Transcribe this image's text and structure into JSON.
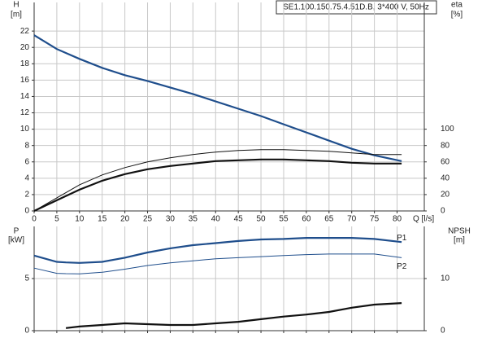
{
  "chart_data": [
    {
      "type": "line",
      "title": "SE1.100.150.75.4.51D.B, 3*400 V, 50Hz",
      "ylabel": "H",
      "yunit": "[m]",
      "y2label": "eta",
      "y2unit": "[%]",
      "xlabel": "Q [l/s]",
      "x": [
        0,
        5,
        10,
        15,
        20,
        25,
        30,
        35,
        40,
        45,
        50,
        55,
        60,
        65,
        70,
        75,
        81
      ],
      "xlim": [
        0,
        86
      ],
      "xticks": [
        0,
        5,
        10,
        15,
        20,
        25,
        30,
        35,
        40,
        45,
        50,
        55,
        60,
        65,
        70,
        75,
        80
      ],
      "ylim": [
        0,
        25.5
      ],
      "yticks": [
        0,
        2,
        4,
        6,
        8,
        10,
        12,
        14,
        16,
        18,
        20,
        22
      ],
      "y2lim": [
        0,
        255
      ],
      "y2ticks": [
        0,
        20,
        40,
        60,
        80,
        100
      ],
      "grid": true,
      "series": [
        {
          "color": "#1f4e8c",
          "bold": true,
          "values": [
            21.5,
            19.8,
            18.6,
            17.5,
            16.6,
            15.9,
            15.1,
            14.3,
            13.4,
            12.5,
            11.6,
            10.6,
            9.6,
            8.6,
            7.6,
            6.8,
            6.1
          ]
        },
        {
          "color": "#111111",
          "bold": false,
          "axis": "y2",
          "values": [
            0,
            16,
            32,
            44,
            53,
            60,
            65,
            69,
            72,
            74,
            75,
            75,
            74,
            73,
            71,
            69,
            69
          ]
        },
        {
          "color": "#111111",
          "bold": true,
          "axis": "y2",
          "values": [
            0,
            13,
            26,
            37,
            45,
            51,
            55,
            58,
            61,
            62,
            63,
            63,
            62,
            61,
            59,
            58,
            58
          ]
        }
      ]
    },
    {
      "type": "line",
      "ylabel": "P",
      "yunit": "[kW]",
      "y2label": "NPSH",
      "y2unit": "[m]",
      "x": [
        0,
        5,
        7,
        10,
        15,
        20,
        25,
        30,
        35,
        40,
        45,
        50,
        55,
        60,
        65,
        70,
        75,
        81
      ],
      "xlim": [
        0,
        86
      ],
      "xticks": [
        0,
        5,
        10,
        15,
        20,
        25,
        30,
        35,
        40,
        45,
        50,
        55,
        60,
        65,
        70,
        75,
        80
      ],
      "ylim": [
        0,
        10
      ],
      "yticks": [
        0,
        5
      ],
      "y2lim": [
        0,
        20
      ],
      "y2ticks": [
        0,
        10
      ],
      "grid": true,
      "series": [
        {
          "name": "P1",
          "color": "#1f4e8c",
          "bold": true,
          "values": [
            7.2,
            6.6,
            6.55,
            6.5,
            6.6,
            7.0,
            7.5,
            7.9,
            8.2,
            8.4,
            8.6,
            8.75,
            8.8,
            8.9,
            8.9,
            8.9,
            8.8,
            8.5
          ]
        },
        {
          "name": "P2",
          "color": "#1f4e8c",
          "bold": false,
          "values": [
            6.0,
            5.5,
            5.47,
            5.45,
            5.6,
            5.9,
            6.25,
            6.5,
            6.7,
            6.9,
            7.0,
            7.1,
            7.2,
            7.3,
            7.35,
            7.35,
            7.35,
            7.0
          ]
        },
        {
          "color": "#111111",
          "bold": true,
          "axis": "y2",
          "values": [
            null,
            null,
            0.5,
            0.8,
            1.1,
            1.4,
            1.25,
            1.1,
            1.1,
            1.4,
            1.7,
            2.2,
            2.7,
            3.1,
            3.6,
            4.4,
            5.0,
            5.3
          ]
        }
      ]
    }
  ]
}
